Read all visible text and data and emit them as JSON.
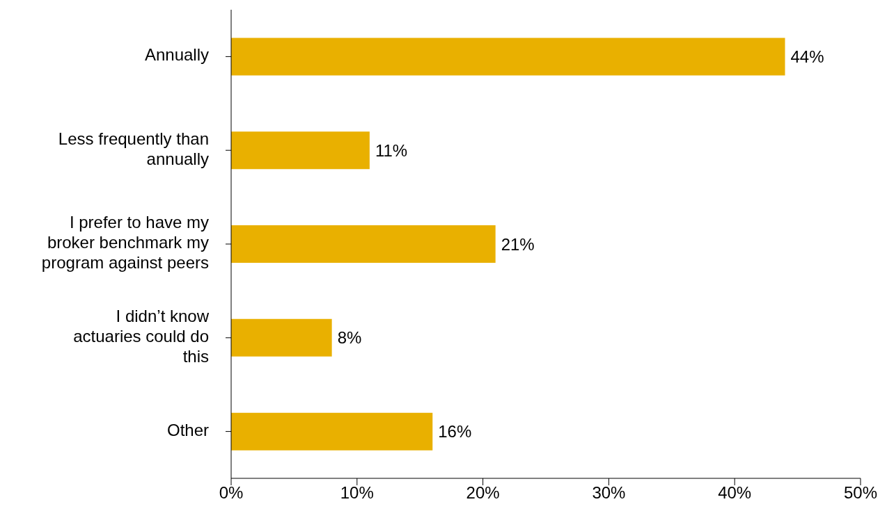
{
  "chart_data": {
    "type": "bar",
    "orientation": "horizontal",
    "categories": [
      "Annually",
      "Less frequently than annually",
      "I prefer to have my broker benchmark my program against peers",
      "I didn’t know actuaries could do this",
      "Other"
    ],
    "values": [
      44,
      11,
      21,
      8,
      16
    ],
    "value_labels": [
      "44%",
      "11%",
      "21%",
      "8%",
      "16%"
    ],
    "color": "#e9b000",
    "xlim": [
      0,
      50
    ],
    "xticks": [
      {
        "value": 0,
        "label": "0%"
      },
      {
        "value": 10,
        "label": "10%"
      },
      {
        "value": 20,
        "label": "20%"
      },
      {
        "value": 30,
        "label": "30%"
      },
      {
        "value": 40,
        "label": "40%"
      },
      {
        "value": 50,
        "label": "50%"
      }
    ],
    "grid": false,
    "legend": false
  }
}
